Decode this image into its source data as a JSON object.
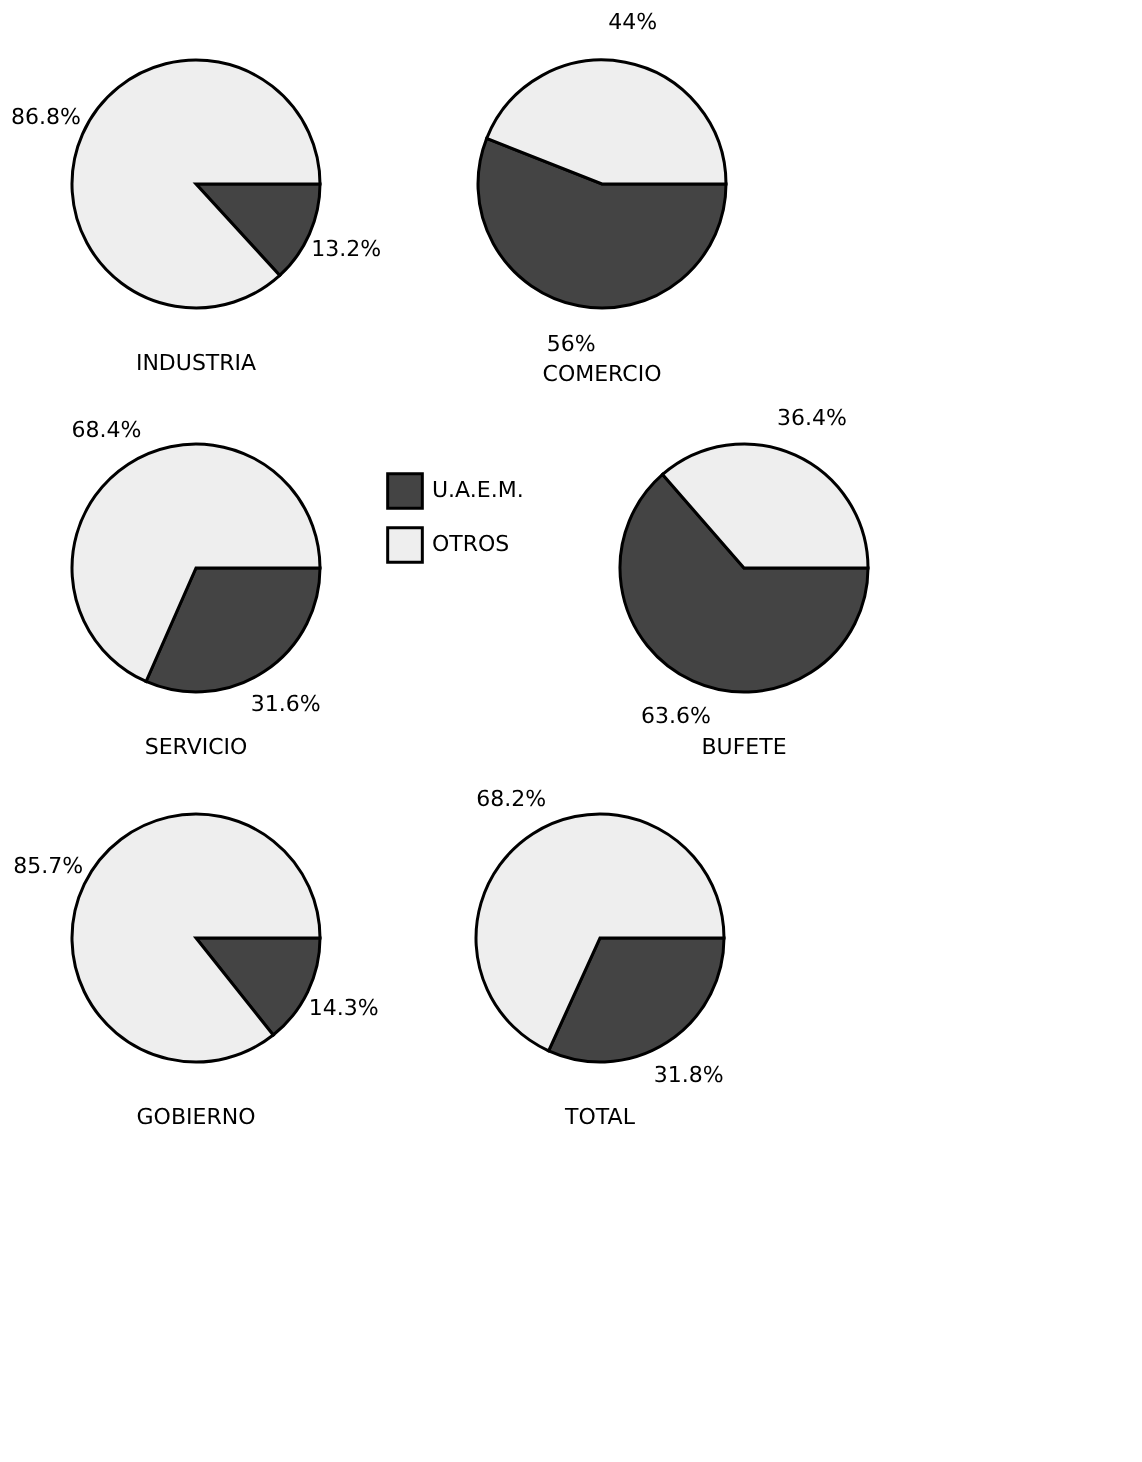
{
  "chart_data": [
    {
      "type": "pie",
      "title": "INDUSTRIA",
      "categories": [
        null,
        null
      ],
      "values": [
        13.2,
        86.8
      ],
      "colors": [
        "#444444",
        "#eeeeee"
      ],
      "value_labels": [
        "13.2%",
        "86.8%"
      ],
      "legend": false
    },
    {
      "type": "pie",
      "title": "COMERCIO",
      "categories": [
        null,
        null
      ],
      "values": [
        56,
        44
      ],
      "colors": [
        "#444444",
        "#eeeeee"
      ],
      "value_labels": [
        "56%",
        "44%"
      ],
      "legend": false
    },
    {
      "type": "pie",
      "title": "SERVICIO",
      "categories": [
        "U.A.E.M.",
        "OTROS"
      ],
      "values": [
        31.6,
        68.4
      ],
      "colors": [
        "#444444",
        "#eeeeee"
      ],
      "value_labels": [
        "31.6%",
        "68.4%"
      ],
      "legend": "right"
    },
    {
      "type": "pie",
      "title": "BUFETE",
      "categories": [
        null,
        null
      ],
      "values": [
        63.6,
        36.4
      ],
      "colors": [
        "#444444",
        "#eeeeee"
      ],
      "value_labels": [
        "63.6%",
        "36.4%"
      ],
      "legend": false
    },
    {
      "type": "pie",
      "title": "GOBIERNO",
      "categories": [
        null,
        null
      ],
      "values": [
        14.3,
        85.7
      ],
      "colors": [
        "#444444",
        "#eeeeee"
      ],
      "value_labels": [
        "14.3%",
        "85.7%"
      ],
      "legend": false
    },
    {
      "type": "pie",
      "title": "TOTAL",
      "categories": [
        null,
        null
      ],
      "values": [
        31.8,
        68.2
      ],
      "colors": [
        "#444444",
        "#eeeeee"
      ],
      "value_labels": [
        "31.8%",
        "68.2%"
      ],
      "legend": false
    }
  ]
}
